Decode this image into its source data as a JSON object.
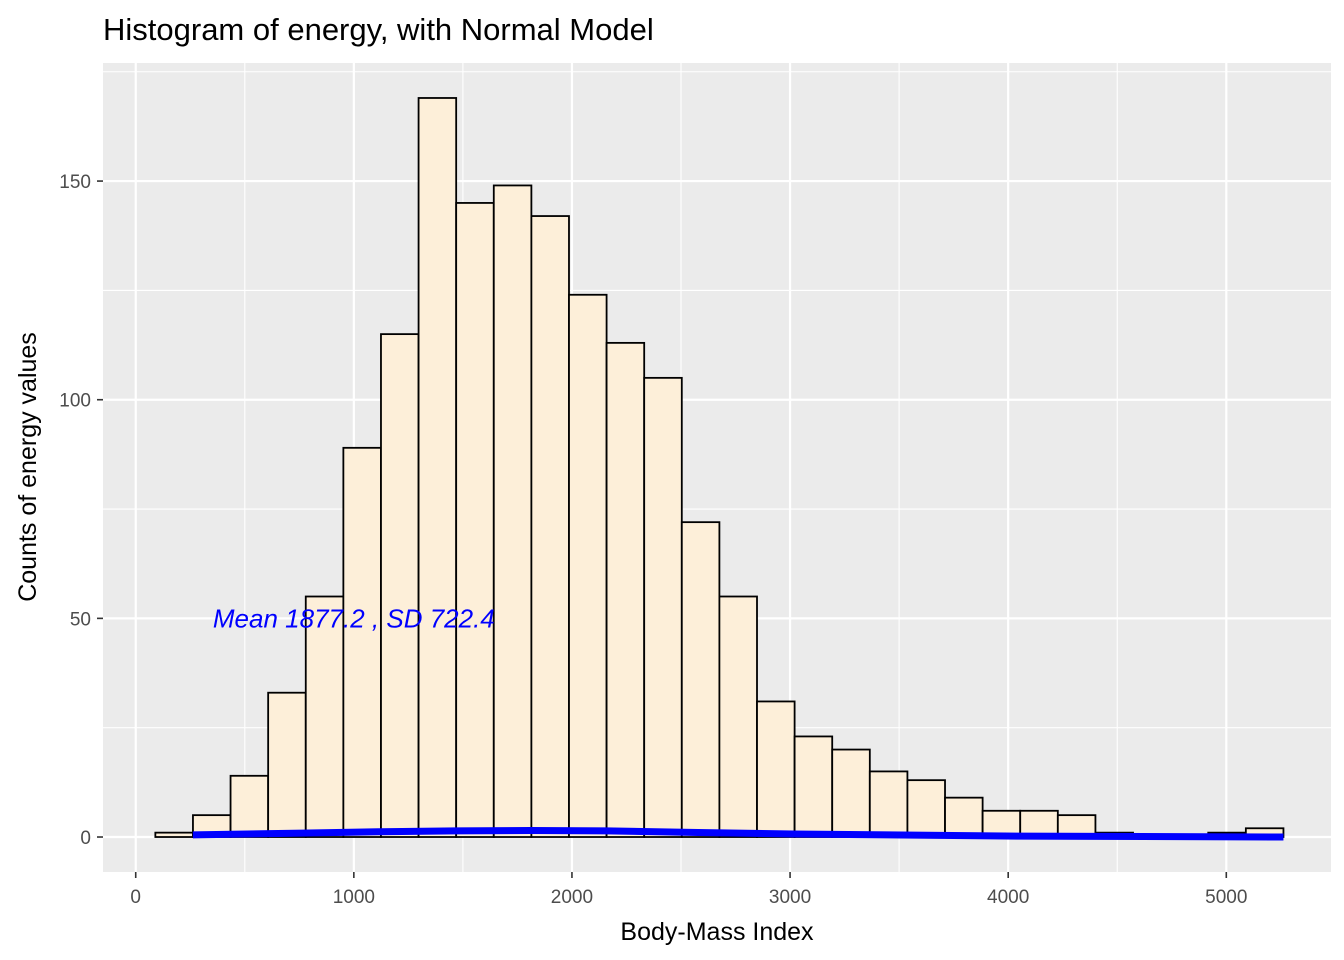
{
  "chart_data": {
    "type": "bar",
    "title": "Histogram of energy, with Normal Model",
    "xlabel": "Body-Mass Index",
    "ylabel": "Counts of energy values",
    "xlim": [
      -150,
      5480
    ],
    "ylim": [
      -8,
      177
    ],
    "x_ticks": [
      0,
      1000,
      2000,
      3000,
      4000,
      5000
    ],
    "x_tick_labels": [
      "0",
      "1000",
      "2000",
      "3000",
      "4000",
      "5000"
    ],
    "y_ticks": [
      0,
      50,
      100,
      150
    ],
    "y_tick_labels": [
      "0",
      "50",
      "100",
      "150"
    ],
    "grid": true,
    "bin_width": 172.4,
    "bin_starts": [
      90,
      262.4,
      434.8,
      607.2,
      779.6,
      952,
      1124.4,
      1296.8,
      1469.2,
      1641.6,
      1814,
      1986.4,
      2158.8,
      2331.2,
      2503.6,
      2676,
      2848.4,
      3020.8,
      3193.2,
      3365.6,
      3538,
      3710.4,
      3882.8,
      4055.2,
      4227.6,
      4400,
      4572.4,
      4744.8,
      4917.2,
      5089.6
    ],
    "values": [
      1,
      5,
      14,
      33,
      55,
      89,
      115,
      169,
      145,
      149,
      142,
      124,
      113,
      105,
      72,
      55,
      31,
      23,
      20,
      15,
      13,
      9,
      6,
      6,
      5,
      1,
      0,
      0,
      1,
      2
    ],
    "bar_fill": "#fdefd9",
    "bar_stroke": "#000000",
    "normal_curve": {
      "color": "#0000ff",
      "x": [
        262,
        762,
        1112,
        1462,
        1812,
        2162,
        2512,
        2612,
        3012,
        4062,
        5262
      ],
      "y": [
        0.5,
        0.9,
        1.2,
        1.4,
        1.5,
        1.4,
        1.1,
        1.0,
        0.7,
        0.2,
        0.0
      ]
    },
    "annotation": {
      "text": "Mean 1877.2 , SD 722.4",
      "x": 1000,
      "y": 50,
      "color": "#0000ff"
    },
    "panel_background": "#ebebeb",
    "grid_major_color": "#ffffff"
  }
}
